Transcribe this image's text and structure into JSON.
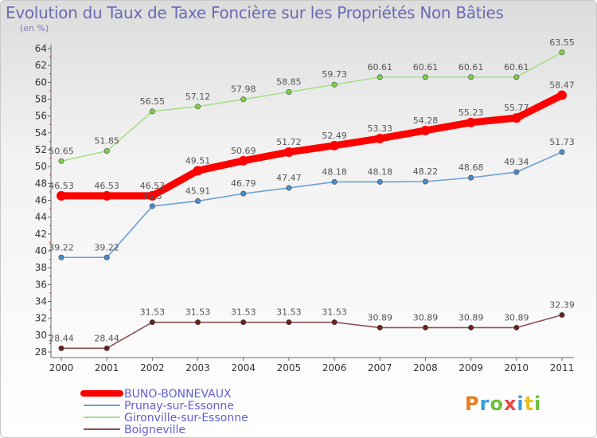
{
  "chart_data": {
    "type": "line",
    "title": "Evolution du Taux de Taxe Foncière sur les Propriétés Non Bâties",
    "ylabel": "(en %)",
    "xlabel": "",
    "ylim": [
      28,
      64
    ],
    "yticks": [
      28,
      30,
      32,
      34,
      36,
      38,
      40,
      42,
      44,
      46,
      48,
      50,
      52,
      54,
      56,
      58,
      60,
      62,
      64
    ],
    "categories": [
      "2000",
      "2001",
      "2002",
      "2003",
      "2004",
      "2005",
      "2006",
      "2007",
      "2008",
      "2009",
      "2010",
      "2011"
    ],
    "grid": false,
    "legend_position": "bottom-left",
    "series": [
      {
        "name": "BUNO-BONNEVAUX",
        "color": "#ff0000",
        "legend_color": "#6060d0",
        "marker": "#ff0000",
        "values": [
          46.53,
          46.53,
          46.53,
          49.51,
          50.69,
          51.72,
          52.49,
          53.33,
          54.28,
          55.23,
          55.77,
          58.47
        ],
        "labels": [
          "46.53",
          "46.53",
          "46.53",
          "49.51",
          "50.69",
          "51.72",
          "52.49",
          "53.33",
          "54.28",
          "55.23",
          "55.77",
          "58.47"
        ]
      },
      {
        "name": "Prunay-sur-Essonne",
        "color": "#6ea0d2",
        "legend_color": "#6060d0",
        "marker": "#4a8ccc",
        "values": [
          39.22,
          39.22,
          45.3,
          45.91,
          46.79,
          47.47,
          48.18,
          48.18,
          48.22,
          48.68,
          49.34,
          51.73
        ],
        "labels": [
          "39.22",
          "39.22",
          "45.3",
          "45.91",
          "46.79",
          "47.47",
          "48.18",
          "48.18",
          "48.22",
          "48.68",
          "49.34",
          "51.73"
        ]
      },
      {
        "name": "Gironville-sur-Essonne",
        "color": "#a8de8c",
        "legend_color": "#6060d0",
        "marker": "#7ed04a",
        "values": [
          50.65,
          51.85,
          56.55,
          57.12,
          57.98,
          58.85,
          59.73,
          60.61,
          60.61,
          60.61,
          60.61,
          63.55
        ],
        "labels": [
          "50.65",
          "51.85",
          "56.55",
          "57.12",
          "57.98",
          "58.85",
          "59.73",
          "60.61",
          "60.61",
          "60.61",
          "60.61",
          "63.55"
        ]
      },
      {
        "name": "Boigneville",
        "color": "#8a5050",
        "legend_color": "#6060d0",
        "marker": "#6a2020",
        "values": [
          28.44,
          28.44,
          31.53,
          31.53,
          31.53,
          31.53,
          31.53,
          30.89,
          30.89,
          30.89,
          30.89,
          32.39
        ],
        "labels": [
          "28.44",
          "28.44",
          "31.53",
          "31.53",
          "31.53",
          "31.53",
          "31.53",
          "30.89",
          "30.89",
          "30.89",
          "30.89",
          "32.39"
        ]
      }
    ]
  },
  "logo": {
    "letters": [
      "P",
      "r",
      "o",
      "x",
      "i",
      "t",
      "i"
    ],
    "colors": [
      "#e87c1e",
      "#3aa0d8",
      "#6cc03a",
      "#e84848",
      "#3aa0d8",
      "#e8c020",
      "#6cc03a"
    ]
  }
}
